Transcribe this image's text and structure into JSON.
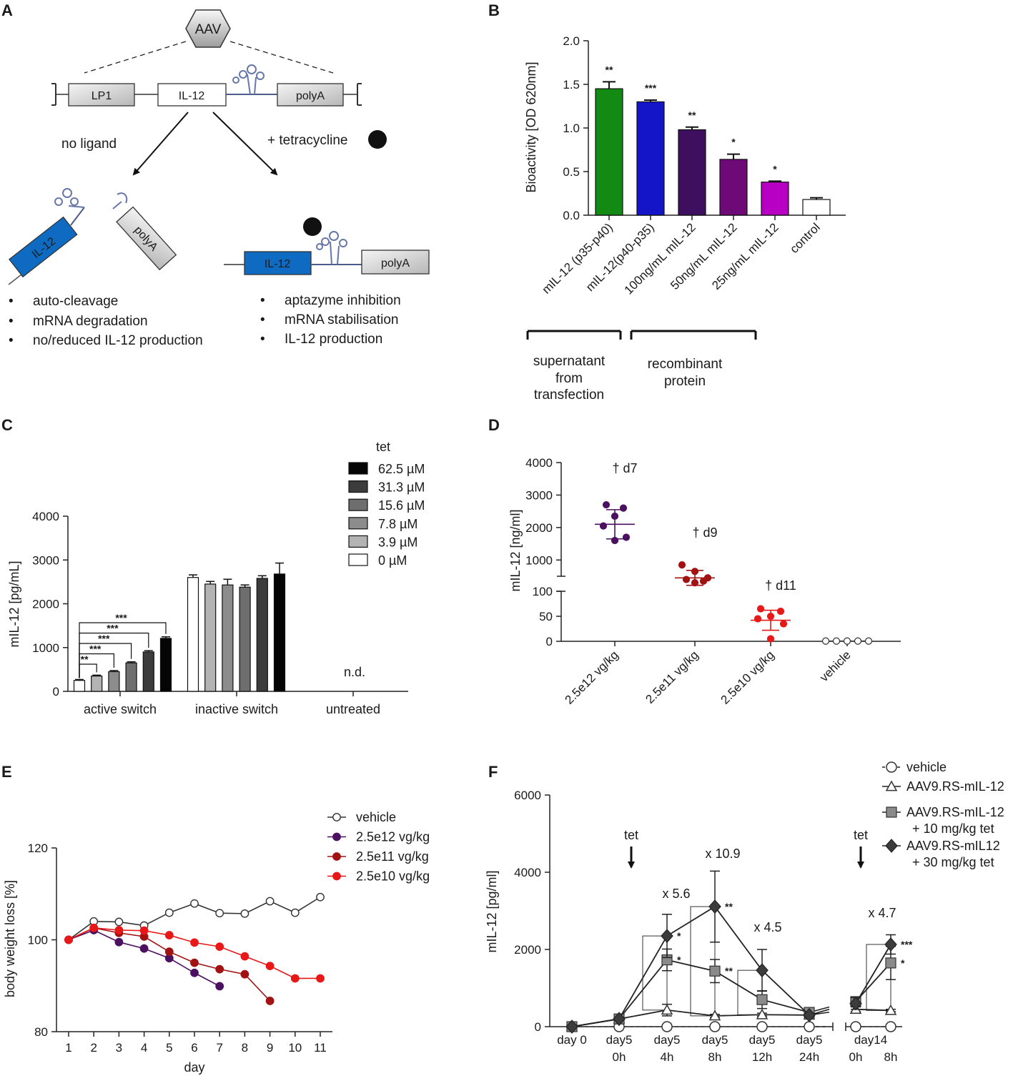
{
  "panels": {
    "a": {
      "label": "A",
      "aav": "AAV",
      "promoter": "LP1",
      "gene": "IL-12",
      "polya": "polyA",
      "no_ligand": "no ligand",
      "tetracycline": "+ tetracycline",
      "left_bullets": [
        "auto-cleavage",
        "mRNA degradation",
        "no/reduced IL-12 production"
      ],
      "right_bullets": [
        "aptazyme inhibition",
        "mRNA stabilisation",
        "IL-12 production"
      ]
    },
    "b_label": "B",
    "b_groups": [
      {
        "lines": [
          "supernatant",
          "from",
          "transfection"
        ]
      },
      {
        "lines": [
          "recombinant",
          "protein"
        ]
      }
    ],
    "c_label": "C",
    "d_label": "D",
    "e_label": "E",
    "f_label": "F"
  },
  "chart_data": [
    {
      "id": "B",
      "type": "bar",
      "ylabel": "Bioactivity [OD 620nm]",
      "ylim": [
        0,
        2.0
      ],
      "yticks": [
        "0.0",
        "0.5",
        "1.0",
        "1.5",
        "2.0"
      ],
      "categories": [
        "mIL-12 (p35-p40)",
        "mIL-12(p40-p35)",
        "100ng/mL mIL-12",
        "50ng/mL mIL-12",
        "25ng/mL mIL-12",
        "control"
      ],
      "values": [
        1.45,
        1.3,
        0.98,
        0.64,
        0.38,
        0.18
      ],
      "errors": [
        0.08,
        0.02,
        0.03,
        0.06,
        0.01,
        0.02
      ],
      "colors": [
        "#138a13",
        "#1414c8",
        "#3d0f5e",
        "#6e0a78",
        "#b800c4",
        "#ffffff"
      ],
      "significance": [
        "**",
        "***",
        "**",
        "*",
        "*",
        ""
      ]
    },
    {
      "id": "C",
      "type": "bar",
      "ylabel": "mIL-12  [pg/mL]",
      "ylim": [
        0,
        4000
      ],
      "yticks": [
        "0",
        "1000",
        "2000",
        "3000",
        "4000"
      ],
      "legend_title": "tet",
      "series_names": [
        "0    µM",
        "3.9  µM",
        "7.8  µM",
        "15.6 µM",
        "31.3 µM",
        "62.5 µM"
      ],
      "series_colors": [
        "#ffffff",
        "#b3b3b3",
        "#8c8c8c",
        "#6e6e6e",
        "#3c3c3c",
        "#050505"
      ],
      "categories": [
        "active switch",
        "inactive switch",
        "untreated"
      ],
      "values": [
        [
          250,
          350,
          450,
          650,
          900,
          1210
        ],
        [
          2600,
          2450,
          2430,
          2380,
          2580,
          2680
        ],
        [
          0,
          0,
          0,
          0,
          0,
          0
        ]
      ],
      "errors": [
        [
          20,
          20,
          25,
          25,
          30,
          35
        ],
        [
          60,
          60,
          130,
          50,
          60,
          250
        ],
        [
          0,
          0,
          0,
          0,
          0,
          0
        ]
      ],
      "brackets": [
        "**",
        "***",
        "***",
        "***",
        "***"
      ],
      "untreated_note": "n.d."
    },
    {
      "id": "D",
      "type": "scatter",
      "ylabel": "mIL-12 [ng/ml]",
      "yticks_upper": [
        "1000",
        "2000",
        "3000",
        "4000"
      ],
      "yticks_lower": [
        "0",
        "50",
        "100"
      ],
      "categories": [
        "2.5e12 vg/kg",
        "2.5e11 vg/kg",
        "2.5e10 vg/kg",
        "vehicle"
      ],
      "colors": [
        "#4b1060",
        "#a31212",
        "#e81818",
        "#ffffff"
      ],
      "points": [
        [
          2700,
          2600,
          2350,
          2050,
          1700,
          1600
        ],
        [
          850,
          650,
          450,
          400,
          350,
          300
        ],
        [
          65,
          60,
          50,
          45,
          35,
          5
        ],
        [
          0.5,
          0.5,
          0.5,
          0.5,
          0.5,
          0.5
        ]
      ],
      "means": [
        2100,
        450,
        42,
        0.5
      ],
      "sd": [
        450,
        230,
        20,
        0
      ],
      "annotations": [
        "† d7",
        "† d9",
        "† d11",
        ""
      ]
    },
    {
      "id": "E",
      "type": "line",
      "xlabel": "day",
      "ylabel": "body weight loss [%]",
      "ylim": [
        80,
        120
      ],
      "yticks": [
        "80",
        "100",
        "120"
      ],
      "x": [
        1,
        2,
        3,
        4,
        5,
        6,
        7,
        8,
        9,
        10,
        11
      ],
      "series": [
        {
          "name": "vehicle",
          "color": "#333333",
          "fill": "#ffffff",
          "x": [
            1,
            2,
            3,
            4,
            5,
            6,
            7,
            8,
            9,
            10,
            11
          ],
          "values": [
            100,
            104,
            103.9,
            103.1,
            105.9,
            107.9,
            105.8,
            105.7,
            108.4,
            105.9,
            109.3
          ]
        },
        {
          "name": "2.5e12 vg/kg",
          "color": "#4b1060",
          "fill": "#4b1060",
          "x": [
            1,
            2,
            3,
            4,
            5,
            6,
            7
          ],
          "values": [
            100,
            102.1,
            99.5,
            98.1,
            96.0,
            92.8,
            89.9
          ]
        },
        {
          "name": "2.5e11 vg/kg",
          "color": "#a31212",
          "fill": "#a31212",
          "x": [
            1,
            2,
            3,
            4,
            5,
            6,
            7,
            8,
            9
          ],
          "values": [
            100,
            102.6,
            101.5,
            100.7,
            97.4,
            95.0,
            93.6,
            92.5,
            86.7
          ]
        },
        {
          "name": "2.5e10 vg/kg",
          "color": "#e81818",
          "fill": "#e81818",
          "x": [
            1,
            2,
            3,
            4,
            5,
            6,
            7,
            8,
            9,
            10,
            11
          ],
          "values": [
            100,
            102.6,
            102.1,
            102.0,
            101.0,
            99.4,
            98.5,
            96.4,
            94.3,
            91.6,
            91.6
          ]
        }
      ]
    },
    {
      "id": "F",
      "type": "line",
      "ylabel": "mIL-12 [pg/ml]",
      "ylim": [
        0,
        6000
      ],
      "yticks": [
        "0",
        "2000",
        "4000",
        "6000"
      ],
      "categories": [
        [
          "day 0",
          ""
        ],
        [
          "day5",
          "0h"
        ],
        [
          "day5",
          "4h"
        ],
        [
          "day5",
          "8h"
        ],
        [
          "day5",
          "12h"
        ],
        [
          "day5",
          "24h"
        ],
        [
          "",
          "0h"
        ],
        [
          "day14",
          "8h"
        ]
      ],
      "series": [
        {
          "name": "vehicle",
          "marker": "circle",
          "values": [
            0,
            0,
            0,
            0,
            0,
            0,
            0,
            0
          ],
          "errors": [
            0,
            0,
            0,
            0,
            0,
            0,
            0,
            0
          ]
        },
        {
          "name": "AAV9.RS-mIL-12",
          "marker": "triangle",
          "values": [
            0,
            200,
            430,
            280,
            310,
            300,
            450,
            420
          ],
          "errors": [
            0,
            20,
            150,
            40,
            40,
            40,
            60,
            30
          ]
        },
        {
          "name": "AAV9.RS-mIL-12\n+ 10 mg/kg tet",
          "marker": "square",
          "values": [
            0,
            200,
            1730,
            1440,
            700,
            370,
            650,
            1650
          ],
          "errors": [
            0,
            20,
            280,
            300,
            230,
            60,
            120,
            430
          ]
        },
        {
          "name": "AAV9.RS-mIL12\n+ 30 mg/kg tet",
          "marker": "diamond",
          "values": [
            0,
            200,
            2350,
            3110,
            1460,
            300,
            600,
            2130
          ],
          "errors": [
            0,
            20,
            560,
            920,
            540,
            50,
            150,
            250
          ]
        }
      ],
      "tet_marks": [
        "tet",
        "tet"
      ],
      "fold_changes": [
        "x 5.6",
        "x 10.9",
        "x 4.5",
        "x 4.7"
      ],
      "stars_square": [
        "*",
        "**",
        "*"
      ],
      "stars_diamond": [
        "*",
        "**",
        "***"
      ]
    }
  ]
}
